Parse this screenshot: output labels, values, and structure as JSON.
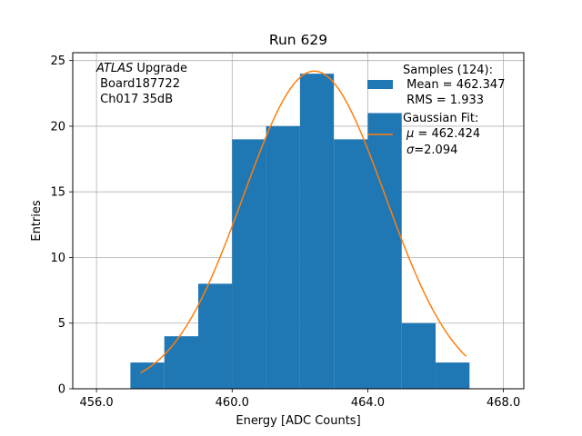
{
  "chart_data": {
    "type": "bar",
    "title": "Run 629",
    "xlabel": "Energy [ADC Counts]",
    "ylabel": "Entries",
    "xlim": [
      455.3,
      468.6
    ],
    "ylim": [
      0,
      25.6
    ],
    "grid": true,
    "xticks": [
      456.0,
      460.0,
      464.0,
      468.0
    ],
    "xtick_labels": [
      "456.0",
      "460.0",
      "464.0",
      "468.0"
    ],
    "yticks": [
      0,
      5,
      10,
      15,
      20,
      25
    ],
    "ytick_labels": [
      "0",
      "5",
      "10",
      "15",
      "20",
      "25"
    ],
    "bins": [
      {
        "x0": 457.0,
        "x1": 458.0,
        "count": 2
      },
      {
        "x0": 458.0,
        "x1": 459.0,
        "count": 4
      },
      {
        "x0": 459.0,
        "x1": 460.0,
        "count": 8
      },
      {
        "x0": 460.0,
        "x1": 461.0,
        "count": 19
      },
      {
        "x0": 461.0,
        "x1": 462.0,
        "count": 20
      },
      {
        "x0": 462.0,
        "x1": 463.0,
        "count": 24
      },
      {
        "x0": 463.0,
        "x1": 464.0,
        "count": 19
      },
      {
        "x0": 464.0,
        "x1": 465.0,
        "count": 21
      },
      {
        "x0": 465.0,
        "x1": 466.0,
        "count": 5
      },
      {
        "x0": 466.0,
        "x1": 467.0,
        "count": 2
      }
    ],
    "fit": {
      "type": "gaussian",
      "mu": 462.424,
      "sigma": 2.094,
      "peak": 24.2,
      "x_range": [
        457.3,
        466.9
      ]
    },
    "colors": {
      "bars": "#1f77b4",
      "fit": "#ff7f0e",
      "grid": "#b0b0b0"
    },
    "annotation": {
      "line1_italic": "ATLAS",
      "line1_rest": " Upgrade",
      "line2": " Board187722",
      "line3": " Ch017 35dB"
    },
    "legend": {
      "location": "top-right",
      "samples": {
        "line1": "Samples (124):",
        "line2": " Mean = 462.347",
        "line3": " RMS = 1.933"
      },
      "fit": {
        "line1": "Gaussian Fit:",
        "mu_symbol": "μ",
        "mu_text": " = 462.424",
        "sigma_symbol": "σ",
        "sigma_text": "=2.094"
      }
    }
  }
}
